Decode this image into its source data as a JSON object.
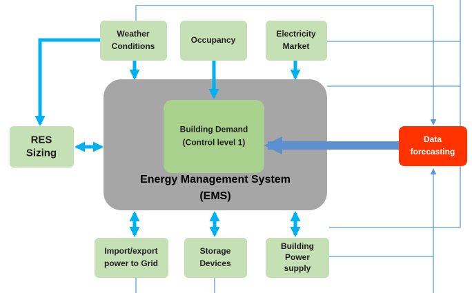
{
  "nodes": [
    {
      "lines": [
        "Weather",
        "Conditions"
      ]
    },
    {
      "lines": [
        "Occupancy"
      ]
    },
    {
      "lines": [
        "Electricity",
        "Market"
      ]
    },
    {
      "lines": [
        "RES",
        "Sizing"
      ]
    },
    {
      "lines": [
        "Energy Management System",
        "(EMS)"
      ]
    },
    {
      "lines": [
        "Building Demand",
        "(Control level 1)"
      ]
    },
    {
      "lines": [
        "Data",
        "forecasting"
      ]
    },
    {
      "lines": [
        "Import/export",
        "power to Grid"
      ]
    },
    {
      "lines": [
        "Storage",
        "Devices"
      ]
    },
    {
      "lines": [
        "Building",
        "Power",
        "supply"
      ]
    }
  ]
}
